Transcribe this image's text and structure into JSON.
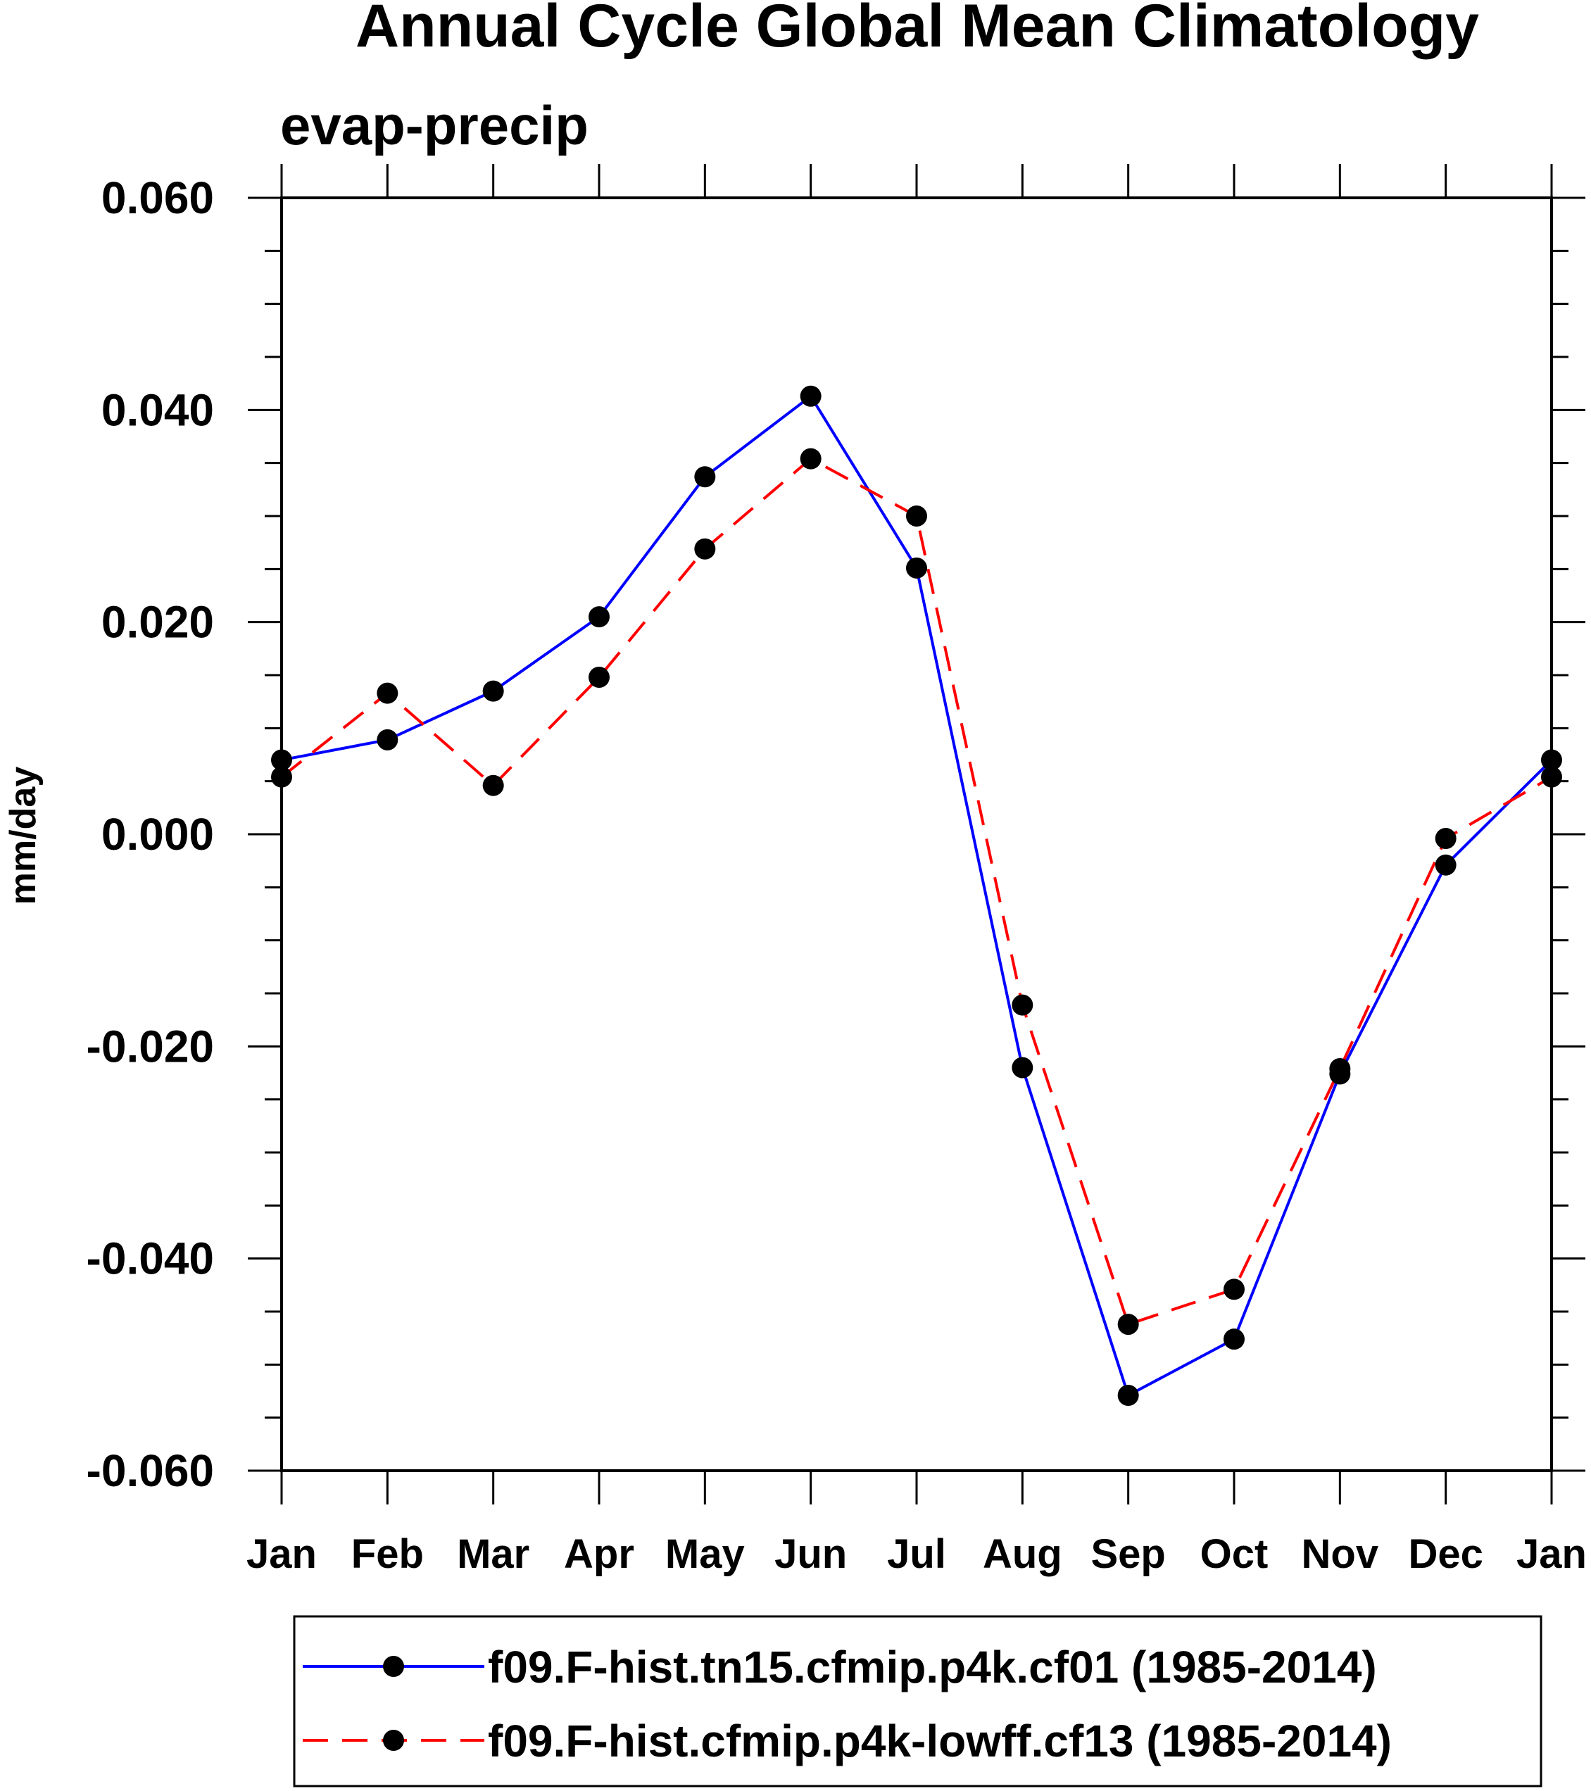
{
  "chart_data": {
    "type": "line",
    "title": "Annual Cycle Global Mean Climatology",
    "subtitle": "evap-precip",
    "xlabel": "",
    "ylabel": "mm/day",
    "ylim": [
      -0.06,
      0.06
    ],
    "yticks": [
      "0.060",
      "0.040",
      "0.020",
      "0.000",
      "-0.020",
      "-0.040",
      "-0.060"
    ],
    "ytick_values": [
      0.06,
      0.04,
      0.02,
      0.0,
      -0.02,
      -0.04,
      -0.06
    ],
    "categories": [
      "Jan",
      "Feb",
      "Mar",
      "Apr",
      "May",
      "Jun",
      "Jul",
      "Aug",
      "Sep",
      "Oct",
      "Nov",
      "Dec",
      "Jan"
    ],
    "grid": false,
    "legend_position": "bottom",
    "series": [
      {
        "name": "f09.F-hist.tn15.cfmip.p4k.cf01 (1985-2014)",
        "color": "#0000ff",
        "dash": "solid",
        "values": [
          0.007,
          0.0089,
          0.0135,
          0.0205,
          0.0337,
          0.0413,
          0.0251,
          -0.022,
          -0.0529,
          -0.0476,
          -0.0226,
          -0.0029,
          0.007
        ]
      },
      {
        "name": "f09.F-hist.cfmip.p4k-lowff.cf13 (1985-2014)",
        "color": "#ff0000",
        "dash": "dashed",
        "values": [
          0.0054,
          0.0133,
          0.0046,
          0.0148,
          0.0269,
          0.0354,
          0.03,
          -0.0161,
          -0.0462,
          -0.0429,
          -0.0221,
          -0.0004,
          0.0054
        ]
      }
    ]
  }
}
